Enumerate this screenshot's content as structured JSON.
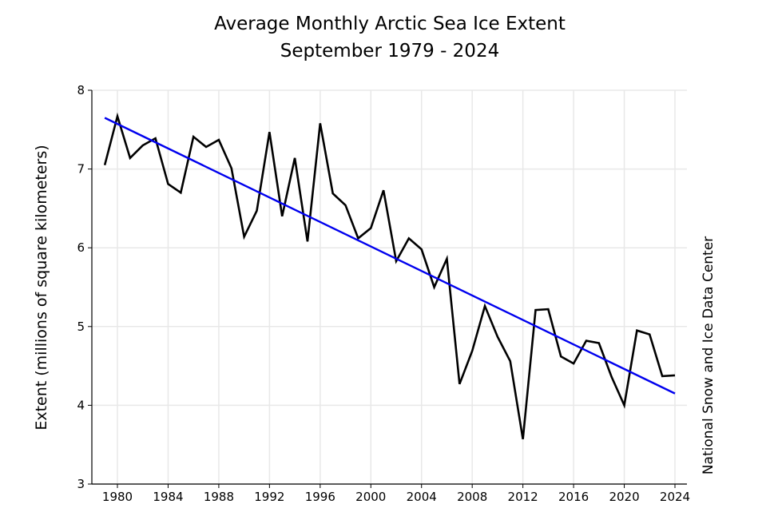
{
  "chart_data": {
    "type": "line",
    "title": "Average Monthly Arctic Sea Ice Extent",
    "subtitle": "September 1979 - 2024",
    "xlabel": "",
    "ylabel": "Extent (millions of square kilometers)",
    "source_label": "National Snow and Ice Data Center",
    "xlim": [
      1978,
      2025
    ],
    "ylim": [
      3,
      8
    ],
    "grid": true,
    "xticks": [
      1980,
      1984,
      1988,
      1992,
      1996,
      2000,
      2004,
      2008,
      2012,
      2016,
      2020,
      2024
    ],
    "yticks": [
      3,
      4,
      5,
      6,
      7,
      8
    ],
    "x": [
      1979,
      1980,
      1981,
      1982,
      1983,
      1984,
      1985,
      1986,
      1987,
      1988,
      1989,
      1990,
      1991,
      1992,
      1993,
      1994,
      1995,
      1996,
      1997,
      1998,
      1999,
      2000,
      2001,
      2002,
      2003,
      2004,
      2005,
      2006,
      2007,
      2008,
      2009,
      2010,
      2011,
      2012,
      2013,
      2014,
      2015,
      2016,
      2017,
      2018,
      2019,
      2020,
      2021,
      2022,
      2023,
      2024
    ],
    "series": [
      {
        "values": [
          7.05,
          7.67,
          7.14,
          7.3,
          7.39,
          6.81,
          6.7,
          7.41,
          7.28,
          7.37,
          7.01,
          6.14,
          6.47,
          7.47,
          6.4,
          7.14,
          6.08,
          7.58,
          6.69,
          6.54,
          6.12,
          6.25,
          6.73,
          5.83,
          6.12,
          5.98,
          5.5,
          5.86,
          4.27,
          4.69,
          5.26,
          4.87,
          4.56,
          3.57,
          5.21,
          5.22,
          4.62,
          4.53,
          4.82,
          4.79,
          4.36,
          4.0,
          4.95,
          4.9,
          4.37,
          4.38
        ],
        "color": "#000000"
      }
    ],
    "trend": {
      "x": [
        1979,
        2024
      ],
      "y": [
        7.65,
        4.15
      ],
      "color": "#0000ee"
    }
  }
}
